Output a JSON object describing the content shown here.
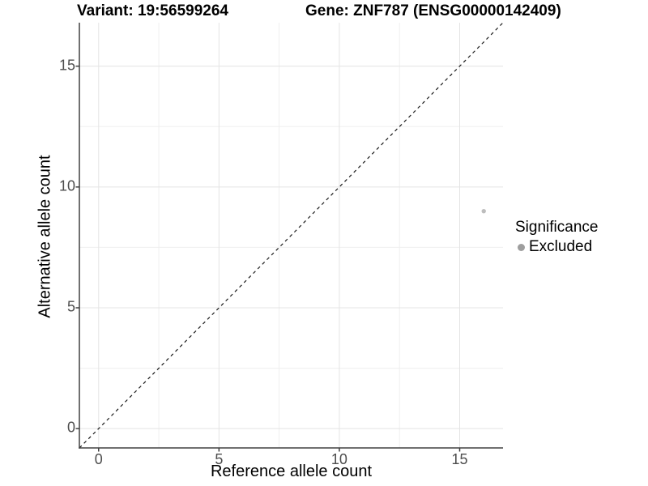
{
  "chart_data": {
    "type": "scatter",
    "titles": [
      "Variant: 19:56599264",
      "Gene: ZNF787 (ENSG00000142409)"
    ],
    "xlabel": "Reference allele count",
    "ylabel": "Alternative allele count",
    "xlim": [
      -0.8,
      16.8
    ],
    "ylim": [
      -0.8,
      16.8
    ],
    "x_ticks": [
      0,
      5,
      10,
      15
    ],
    "y_ticks": [
      0,
      5,
      10,
      15
    ],
    "x_minor_ticks": [
      2.5,
      7.5,
      12.5
    ],
    "y_minor_ticks": [
      2.5,
      7.5,
      12.5
    ],
    "grid": true,
    "points": [
      {
        "x": 16,
        "y": 9,
        "series": "Excluded"
      }
    ],
    "reference_line": {
      "slope": 1,
      "intercept": 0,
      "style": "dashed"
    },
    "legend": {
      "title": "Significance",
      "position": "right",
      "items": [
        {
          "label": "Excluded",
          "color": "#9e9e9e"
        }
      ]
    },
    "colors": {
      "point": "#bdbdbd",
      "legend_key": "#9e9e9e",
      "grid_major": "#e4e4e4",
      "grid_minor": "#efefef",
      "axis_line": "#404040",
      "tick_label": "#4d4d4d",
      "dashed_line": "#1a1a1a",
      "title_text": "#000000",
      "background": "#ffffff"
    }
  }
}
